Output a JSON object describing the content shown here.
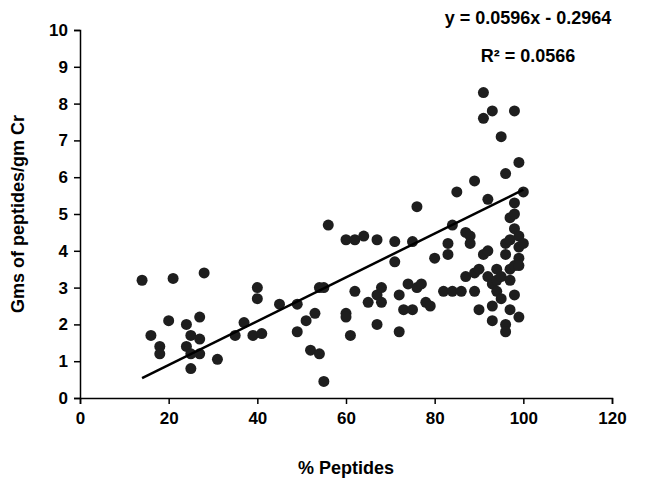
{
  "chart_data": {
    "type": "scatter",
    "x_label": "% Peptides",
    "y_label": "Gms of peptides/gm Cr",
    "annotations": [
      "y = 0.0596x - 0.2964",
      "R² = 0.0566"
    ],
    "color": "#1e1e1e",
    "marker": "circle",
    "xlim": [
      0,
      120
    ],
    "xticks": [
      0,
      20,
      40,
      60,
      80,
      100,
      120
    ],
    "ylim": [
      0,
      10
    ],
    "yticks": [
      0,
      1,
      2,
      3,
      4,
      5,
      6,
      7,
      8,
      9,
      10
    ],
    "x": [
      14,
      16,
      18,
      18,
      20,
      21,
      24,
      24,
      25,
      25,
      25,
      27,
      27,
      27,
      28,
      31,
      35,
      37,
      39,
      40,
      40,
      41,
      45,
      49,
      49,
      51,
      52,
      53,
      54,
      54,
      55,
      55,
      56,
      60,
      60,
      60,
      61,
      62,
      62,
      64,
      65,
      67,
      67,
      67,
      68,
      68,
      71,
      71,
      72,
      72,
      73,
      74,
      75,
      75,
      76,
      76,
      77,
      78,
      79,
      80,
      82,
      83,
      83,
      84,
      84,
      85,
      86,
      87,
      87,
      88,
      88,
      89,
      89,
      89,
      90,
      90,
      91,
      91,
      91,
      92,
      92,
      92,
      93,
      93,
      93,
      93,
      94,
      94,
      94,
      95,
      95,
      95,
      96,
      96,
      96,
      96,
      96,
      97,
      97,
      97,
      97,
      97,
      98,
      98,
      98,
      98,
      98,
      98,
      99,
      99,
      99,
      99,
      99,
      99,
      100,
      100
    ],
    "values": [
      3.2,
      1.7,
      1.4,
      1.2,
      2.1,
      3.25,
      1.4,
      2.0,
      1.7,
      0.8,
      1.2,
      2.2,
      1.6,
      1.2,
      3.4,
      1.05,
      1.7,
      2.05,
      1.7,
      3.0,
      2.7,
      1.75,
      2.55,
      2.55,
      1.8,
      2.1,
      1.3,
      2.3,
      3.0,
      1.2,
      3.0,
      0.45,
      4.7,
      4.3,
      2.3,
      2.2,
      1.7,
      4.3,
      2.9,
      4.4,
      2.6,
      4.3,
      2.0,
      2.8,
      3.0,
      2.6,
      4.25,
      3.7,
      2.8,
      1.8,
      2.4,
      3.1,
      4.25,
      2.4,
      5.2,
      3.0,
      3.1,
      2.6,
      2.5,
      3.8,
      2.9,
      4.2,
      3.9,
      2.9,
      4.7,
      5.6,
      2.9,
      4.5,
      3.3,
      4.2,
      4.4,
      5.9,
      3.4,
      2.9,
      2.4,
      3.5,
      8.3,
      7.6,
      3.9,
      5.4,
      4.0,
      3.3,
      7.8,
      2.1,
      2.5,
      3.1,
      3.5,
      2.9,
      3.2,
      2.7,
      3.3,
      7.1,
      6.1,
      2.0,
      3.9,
      4.2,
      1.8,
      3.5,
      4.3,
      4.9,
      3.2,
      2.4,
      5.3,
      4.6,
      3.6,
      2.8,
      7.8,
      5.0,
      6.4,
      4.4,
      3.8,
      4.1,
      2.2,
      3.6,
      5.6,
      4.2
    ],
    "trendline": {
      "x": [
        14,
        100
      ],
      "values": [
        0.54,
        5.66
      ]
    }
  }
}
